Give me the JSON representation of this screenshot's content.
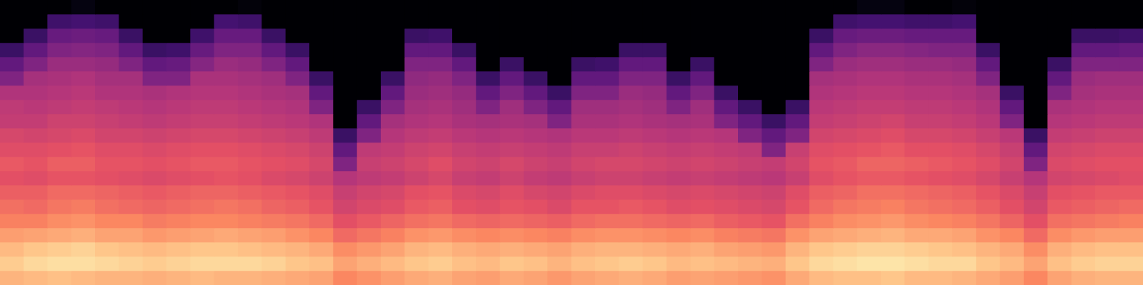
{
  "chart_data": {
    "type": "heatmap",
    "grid": false,
    "tick_labels": false,
    "zlim": [
      -80,
      0
    ],
    "cells": [
      [
        -80,
        -80,
        -80,
        -64,
        -56,
        -50,
        -41,
        -38,
        -37,
        -33,
        -31,
        -28,
        -30,
        -27,
        -24,
        -21,
        -16,
        -11,
        -8,
        -12
      ],
      [
        -80,
        -80,
        -64,
        -56,
        -50,
        -43,
        -41,
        -39,
        -37,
        -34,
        -31,
        -29,
        -31,
        -27,
        -25,
        -21,
        -15,
        -9,
        -6,
        -11
      ],
      [
        -80,
        -63,
        -55,
        -50,
        -45,
        -42,
        -40,
        -38,
        -35,
        -33,
        -30,
        -27,
        -29,
        -25,
        -23,
        -19,
        -14,
        -8,
        -5,
        -10
      ],
      [
        -78,
        -62,
        -54,
        -49,
        -45,
        -41,
        -39,
        -37,
        -35,
        -32,
        -29,
        -27,
        -29,
        -25,
        -22,
        -18,
        -13,
        -7,
        -5,
        -11
      ],
      [
        -80,
        -63,
        -55,
        -50,
        -46,
        -43,
        -41,
        -38,
        -36,
        -34,
        -31,
        -29,
        -30,
        -26,
        -24,
        -20,
        -15,
        -9,
        -6,
        -12
      ],
      [
        -80,
        -80,
        -64,
        -56,
        -50,
        -43,
        -41,
        -39,
        -37,
        -34,
        -31,
        -29,
        -31,
        -27,
        -25,
        -20,
        -15,
        -10,
        -7,
        -12
      ],
      [
        -80,
        -80,
        -80,
        -64,
        -56,
        -50,
        -42,
        -40,
        -38,
        -35,
        -32,
        -30,
        -32,
        -28,
        -26,
        -22,
        -17,
        -11,
        -8,
        -13
      ],
      [
        -80,
        -80,
        -80,
        -63,
        -55,
        -50,
        -41,
        -39,
        -37,
        -34,
        -31,
        -29,
        -31,
        -27,
        -25,
        -21,
        -16,
        -10,
        -7,
        -12
      ],
      [
        -80,
        -80,
        -63,
        -55,
        -49,
        -42,
        -40,
        -38,
        -36,
        -33,
        -30,
        -28,
        -30,
        -26,
        -24,
        -20,
        -15,
        -9,
        -6,
        -11
      ],
      [
        -80,
        -62,
        -55,
        -50,
        -45,
        -42,
        -40,
        -38,
        -36,
        -33,
        -30,
        -28,
        -29,
        -26,
        -23,
        -20,
        -14,
        -9,
        -6,
        -12
      ],
      [
        -79,
        -63,
        -55,
        -50,
        -46,
        -43,
        -41,
        -39,
        -37,
        -34,
        -31,
        -29,
        -30,
        -27,
        -24,
        -21,
        -15,
        -10,
        -6,
        -12
      ],
      [
        -80,
        -80,
        -64,
        -56,
        -50,
        -44,
        -42,
        -40,
        -38,
        -35,
        -32,
        -30,
        -32,
        -28,
        -26,
        -22,
        -16,
        -11,
        -7,
        -13
      ],
      [
        -80,
        -80,
        -80,
        -64,
        -56,
        -50,
        -43,
        -41,
        -39,
        -36,
        -33,
        -31,
        -33,
        -29,
        -27,
        -23,
        -18,
        -12,
        -9,
        -14
      ],
      [
        -80,
        -80,
        -80,
        -80,
        -80,
        -64,
        -56,
        -50,
        -41,
        -38,
        -35,
        -33,
        -35,
        -31,
        -29,
        -25,
        -20,
        -14,
        -10,
        -15
      ],
      [
        -80,
        -80,
        -80,
        -80,
        -80,
        -80,
        -80,
        -80,
        -80,
        -64,
        -56,
        -50,
        -40,
        -36,
        -34,
        -30,
        -25,
        -19,
        -15,
        -20
      ],
      [
        -80,
        -80,
        -80,
        -80,
        -80,
        -80,
        -80,
        -64,
        -56,
        -50,
        -38,
        -36,
        -38,
        -34,
        -32,
        -28,
        -23,
        -17,
        -13,
        -18
      ],
      [
        -80,
        -80,
        -80,
        -80,
        -80,
        -64,
        -56,
        -50,
        -43,
        -40,
        -37,
        -35,
        -37,
        -33,
        -31,
        -26,
        -21,
        -15,
        -11,
        -16
      ],
      [
        -80,
        -80,
        -64,
        -56,
        -50,
        -47,
        -45,
        -43,
        -41,
        -38,
        -35,
        -33,
        -35,
        -30,
        -28,
        -24,
        -18,
        -12,
        -9,
        -14
      ],
      [
        -80,
        -80,
        -63,
        -56,
        -50,
        -46,
        -44,
        -42,
        -40,
        -37,
        -34,
        -31,
        -33,
        -29,
        -27,
        -23,
        -17,
        -11,
        -8,
        -13
      ],
      [
        -80,
        -80,
        -80,
        -64,
        -56,
        -50,
        -46,
        -44,
        -42,
        -39,
        -36,
        -34,
        -36,
        -32,
        -30,
        -25,
        -19,
        -13,
        -10,
        -15
      ],
      [
        -80,
        -80,
        -80,
        -80,
        -80,
        -64,
        -56,
        -50,
        -43,
        -40,
        -37,
        -35,
        -37,
        -33,
        -31,
        -26,
        -20,
        -14,
        -11,
        -16
      ],
      [
        -80,
        -80,
        -80,
        -80,
        -64,
        -56,
        -50,
        -44,
        -42,
        -39,
        -36,
        -33,
        -35,
        -31,
        -29,
        -25,
        -19,
        -13,
        -9,
        -14
      ],
      [
        -80,
        -80,
        -80,
        -80,
        -80,
        -64,
        -56,
        -50,
        -43,
        -40,
        -37,
        -35,
        -37,
        -33,
        -30,
        -26,
        -20,
        -14,
        -10,
        -15
      ],
      [
        -80,
        -80,
        -80,
        -80,
        -80,
        -80,
        -64,
        -56,
        -50,
        -41,
        -38,
        -36,
        -38,
        -34,
        -32,
        -27,
        -21,
        -15,
        -12,
        -17
      ],
      [
        -80,
        -80,
        -80,
        -80,
        -64,
        -56,
        -50,
        -44,
        -42,
        -39,
        -36,
        -34,
        -36,
        -32,
        -29,
        -25,
        -19,
        -13,
        -10,
        -15
      ],
      [
        -80,
        -80,
        -80,
        -80,
        -63,
        -56,
        -50,
        -44,
        -42,
        -39,
        -36,
        -33,
        -35,
        -31,
        -29,
        -24,
        -18,
        -12,
        -9,
        -14
      ],
      [
        -80,
        -80,
        -80,
        -64,
        -56,
        -50,
        -45,
        -43,
        -41,
        -38,
        -35,
        -33,
        -35,
        -31,
        -28,
        -24,
        -18,
        -12,
        -8,
        -13
      ],
      [
        -80,
        -80,
        -80,
        -64,
        -56,
        -50,
        -46,
        -44,
        -42,
        -39,
        -36,
        -34,
        -36,
        -32,
        -29,
        -25,
        -19,
        -13,
        -9,
        -14
      ],
      [
        -80,
        -80,
        -80,
        -80,
        -80,
        -64,
        -56,
        -50,
        -43,
        -40,
        -37,
        -35,
        -37,
        -33,
        -31,
        -26,
        -20,
        -14,
        -11,
        -16
      ],
      [
        -80,
        -80,
        -80,
        -80,
        -64,
        -56,
        -50,
        -44,
        -42,
        -39,
        -36,
        -34,
        -36,
        -32,
        -30,
        -25,
        -19,
        -13,
        -10,
        -15
      ],
      [
        -80,
        -80,
        -80,
        -80,
        -80,
        -80,
        -64,
        -56,
        -50,
        -40,
        -37,
        -35,
        -37,
        -33,
        -31,
        -27,
        -21,
        -15,
        -11,
        -16
      ],
      [
        -80,
        -80,
        -80,
        -80,
        -80,
        -80,
        -80,
        -64,
        -56,
        -50,
        -38,
        -36,
        -38,
        -34,
        -32,
        -28,
        -22,
        -16,
        -12,
        -17
      ],
      [
        -80,
        -80,
        -80,
        -80,
        -80,
        -80,
        -80,
        -80,
        -64,
        -56,
        -50,
        -37,
        -39,
        -35,
        -33,
        -29,
        -23,
        -17,
        -13,
        -18
      ],
      [
        -80,
        -80,
        -80,
        -80,
        -80,
        -80,
        -80,
        -64,
        -56,
        -50,
        -36,
        -34,
        -36,
        -31,
        -29,
        -24,
        -18,
        -12,
        -9,
        -14
      ],
      [
        -80,
        -80,
        -64,
        -56,
        -50,
        -43,
        -41,
        -39,
        -37,
        -34,
        -31,
        -29,
        -31,
        -27,
        -25,
        -21,
        -15,
        -9,
        -6,
        -11
      ],
      [
        -80,
        -63,
        -55,
        -50,
        -45,
        -42,
        -40,
        -38,
        -36,
        -33,
        -30,
        -28,
        -29,
        -26,
        -23,
        -19,
        -14,
        -8,
        -5,
        -10
      ],
      [
        -78,
        -62,
        -54,
        -48,
        -44,
        -41,
        -39,
        -37,
        -35,
        -32,
        -29,
        -26,
        -28,
        -24,
        -22,
        -18,
        -13,
        -7,
        -4,
        -10
      ],
      [
        -78,
        -62,
        -54,
        -48,
        -44,
        -41,
        -39,
        -37,
        -34,
        -31,
        -28,
        -26,
        -28,
        -24,
        -21,
        -17,
        -12,
        -7,
        -4,
        -9
      ],
      [
        -80,
        -63,
        -55,
        -49,
        -45,
        -42,
        -40,
        -38,
        -36,
        -33,
        -30,
        -27,
        -29,
        -25,
        -23,
        -19,
        -14,
        -8,
        -5,
        -11
      ],
      [
        -80,
        -63,
        -55,
        -50,
        -45,
        -42,
        -40,
        -38,
        -36,
        -33,
        -30,
        -28,
        -30,
        -26,
        -24,
        -20,
        -14,
        -9,
        -6,
        -11
      ],
      [
        -79,
        -62,
        -55,
        -50,
        -46,
        -43,
        -41,
        -39,
        -37,
        -34,
        -31,
        -29,
        -31,
        -27,
        -25,
        -21,
        -15,
        -10,
        -6,
        -12
      ],
      [
        -80,
        -80,
        -80,
        -64,
        -56,
        -50,
        -43,
        -41,
        -39,
        -36,
        -33,
        -31,
        -33,
        -29,
        -27,
        -23,
        -18,
        -12,
        -9,
        -14
      ],
      [
        -80,
        -80,
        -80,
        -80,
        -80,
        -80,
        -64,
        -56,
        -50,
        -39,
        -36,
        -34,
        -36,
        -32,
        -30,
        -26,
        -20,
        -14,
        -11,
        -16
      ],
      [
        -80,
        -80,
        -80,
        -80,
        -80,
        -80,
        -80,
        -80,
        -80,
        -64,
        -56,
        -50,
        -40,
        -36,
        -34,
        -30,
        -25,
        -19,
        -15,
        -20
      ],
      [
        -80,
        -80,
        -80,
        -80,
        -64,
        -56,
        -50,
        -42,
        -40,
        -37,
        -34,
        -32,
        -34,
        -30,
        -28,
        -24,
        -19,
        -13,
        -10,
        -15
      ],
      [
        -80,
        -80,
        -64,
        -56,
        -50,
        -45,
        -43,
        -41,
        -39,
        -36,
        -33,
        -31,
        -33,
        -29,
        -27,
        -23,
        -17,
        -11,
        -8,
        -13
      ],
      [
        -80,
        -80,
        -64,
        -56,
        -50,
        -44,
        -42,
        -40,
        -38,
        -35,
        -32,
        -30,
        -32,
        -28,
        -26,
        -22,
        -16,
        -10,
        -7,
        -12
      ],
      [
        -80,
        -80,
        -63,
        -55,
        -50,
        -44,
        -42,
        -40,
        -38,
        -35,
        -32,
        -30,
        -31,
        -28,
        -25,
        -21,
        -16,
        -10,
        -7,
        -12
      ]
    ]
  }
}
